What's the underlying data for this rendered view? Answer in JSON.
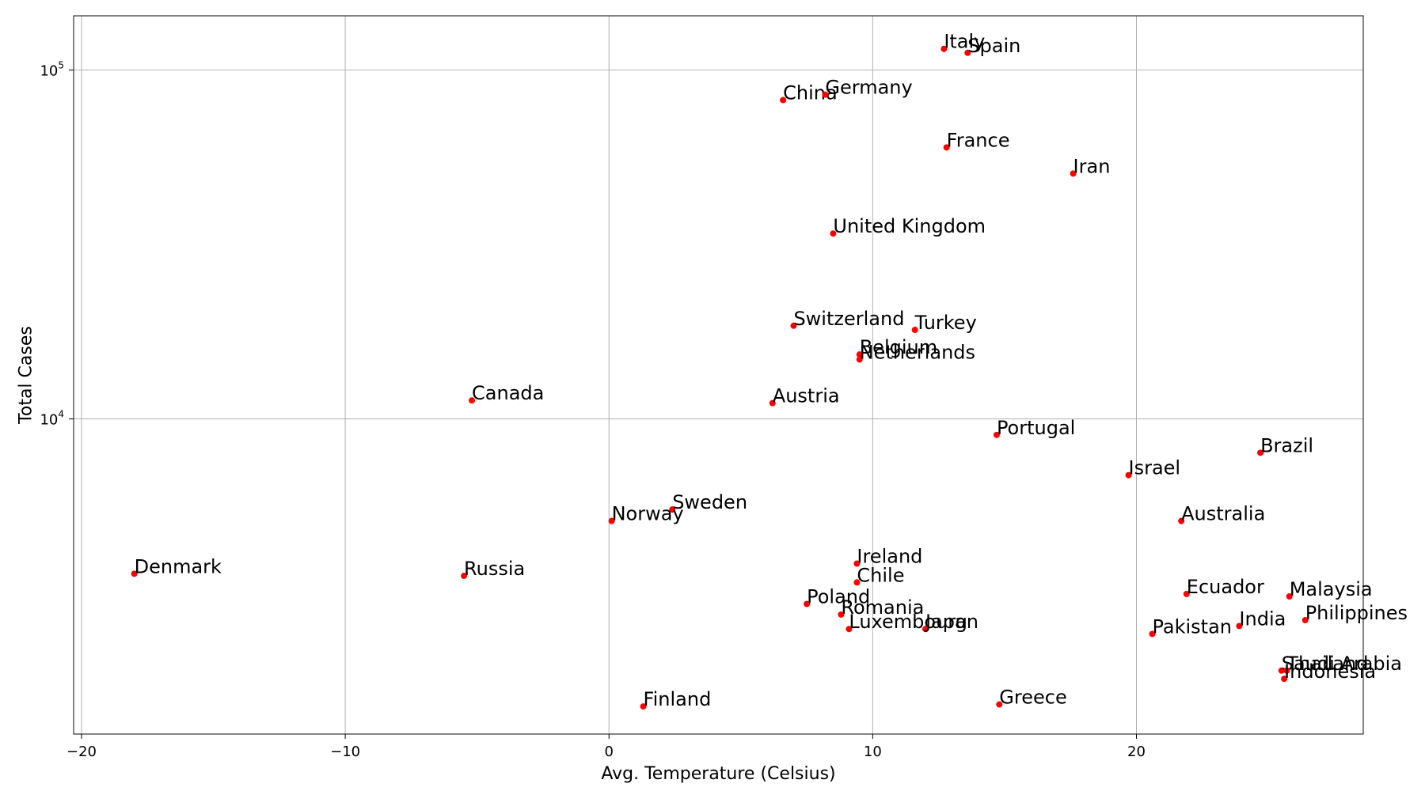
{
  "chart_data": {
    "type": "scatter",
    "title": "",
    "xlabel": "Avg. Temperature (Celsius)",
    "ylabel": "Total Cases",
    "xlim": [
      -20.3,
      28.6
    ],
    "ylim": [
      1250,
      143000
    ],
    "yscale": "log",
    "grid": true,
    "marker_color": "#ff0000",
    "x_ticks": [
      -20,
      -10,
      0,
      10,
      20
    ],
    "x_tick_labels": [
      "−20",
      "−10",
      "0",
      "10",
      "20"
    ],
    "y_ticks": [
      {
        "value": 10000,
        "base": "10",
        "exp": "4"
      },
      {
        "value": 100000,
        "base": "10",
        "exp": "5"
      }
    ],
    "points": [
      {
        "label": "Italy",
        "x": 12.7,
        "y": 115000
      },
      {
        "label": "Spain",
        "x": 13.6,
        "y": 112000
      },
      {
        "label": "China",
        "x": 6.6,
        "y": 82000
      },
      {
        "label": "Germany",
        "x": 8.2,
        "y": 85000
      },
      {
        "label": "France",
        "x": 12.8,
        "y": 60000
      },
      {
        "label": "Iran",
        "x": 17.6,
        "y": 50500
      },
      {
        "label": "United Kingdom",
        "x": 8.5,
        "y": 34000
      },
      {
        "label": "Switzerland",
        "x": 7.0,
        "y": 18500
      },
      {
        "label": "Turkey",
        "x": 11.6,
        "y": 18000
      },
      {
        "label": "Belgium",
        "x": 9.5,
        "y": 15300
      },
      {
        "label": "Netherlands",
        "x": 9.5,
        "y": 14800
      },
      {
        "label": "Canada",
        "x": -5.2,
        "y": 11300
      },
      {
        "label": "Austria",
        "x": 6.2,
        "y": 11100
      },
      {
        "label": "Portugal",
        "x": 14.7,
        "y": 9000
      },
      {
        "label": "Brazil",
        "x": 24.7,
        "y": 8000
      },
      {
        "label": "Israel",
        "x": 19.7,
        "y": 6900
      },
      {
        "label": "Sweden",
        "x": 2.4,
        "y": 5500
      },
      {
        "label": "Norway",
        "x": 0.1,
        "y": 5100
      },
      {
        "label": "Australia",
        "x": 21.7,
        "y": 5100
      },
      {
        "label": "Denmark",
        "x": -18.0,
        "y": 3600
      },
      {
        "label": "Russia",
        "x": -5.5,
        "y": 3550
      },
      {
        "label": "Ireland",
        "x": 9.4,
        "y": 3850
      },
      {
        "label": "Chile",
        "x": 9.4,
        "y": 3400
      },
      {
        "label": "Ecuador",
        "x": 21.9,
        "y": 3150
      },
      {
        "label": "Malaysia",
        "x": 25.8,
        "y": 3100
      },
      {
        "label": "Poland",
        "x": 7.5,
        "y": 2950
      },
      {
        "label": "Romania",
        "x": 8.8,
        "y": 2750
      },
      {
        "label": "Luxembourg",
        "x": 9.1,
        "y": 2500
      },
      {
        "label": "Japan",
        "x": 12.0,
        "y": 2500
      },
      {
        "label": "Philippines",
        "x": 26.4,
        "y": 2650
      },
      {
        "label": "India",
        "x": 23.9,
        "y": 2550
      },
      {
        "label": "Pakistan",
        "x": 20.6,
        "y": 2420
      },
      {
        "label": "Saudi Arabia",
        "x": 25.5,
        "y": 1900
      },
      {
        "label": "Thailand",
        "x": 25.7,
        "y": 1900
      },
      {
        "label": "Indonesia",
        "x": 25.6,
        "y": 1800
      },
      {
        "label": "Finland",
        "x": 1.3,
        "y": 1500
      },
      {
        "label": "Greece",
        "x": 14.8,
        "y": 1520
      }
    ]
  }
}
